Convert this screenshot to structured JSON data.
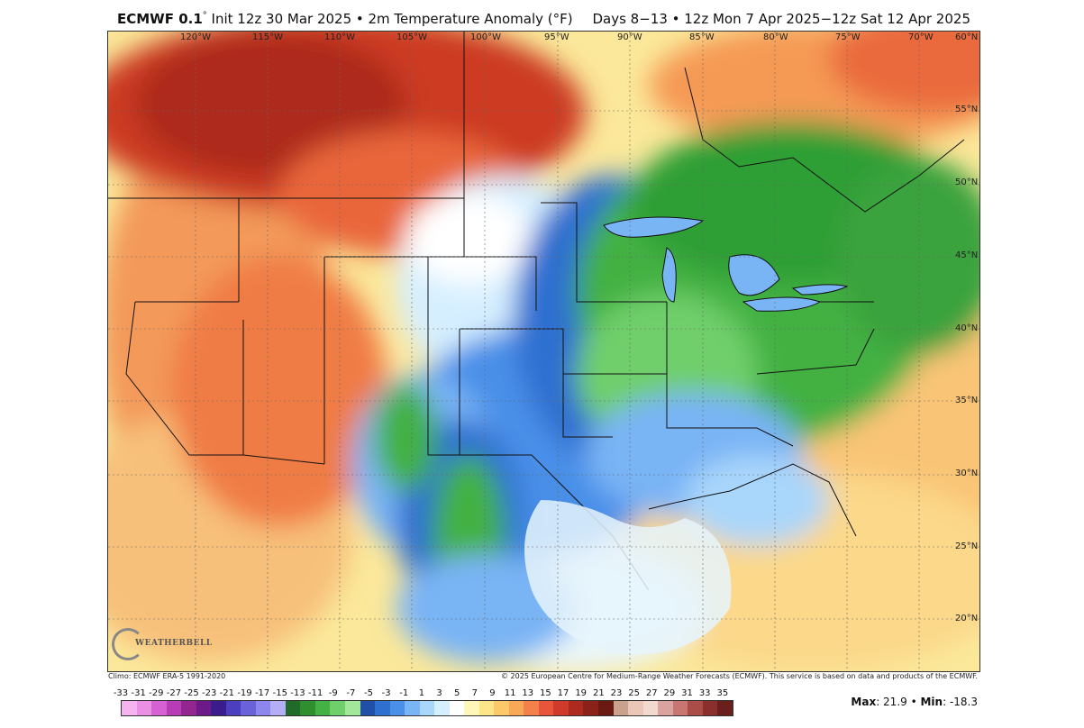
{
  "header": {
    "model": "ECMWF 0.1",
    "deg": "°",
    "desc": " Init 12z 30 Mar 2025 • 2m Temperature Anomaly (°F)",
    "valid": "Days 8−13 • 12z Mon 7 Apr 2025−12z Sat 12 Apr 2025"
  },
  "map": {
    "lon_labels": [
      "120°W",
      "115°W",
      "110°W",
      "105°W",
      "100°W",
      "95°W",
      "90°W",
      "85°W",
      "80°W",
      "75°W",
      "70°W",
      "60°N"
    ],
    "lat_labels": [
      "55°N",
      "50°N",
      "45°N",
      "40°N",
      "35°N",
      "30°N",
      "25°N",
      "20°N"
    ]
  },
  "footer": {
    "climo": "Climo: ECMWF ERA-5 1991-2020",
    "copyright": "© 2025 European Centre for Medium-Range Weather Forecasts (ECMWF). This service is based on data and products of the ECMWF."
  },
  "legend": {
    "ticks": [
      "-33",
      "-31",
      "-29",
      "-27",
      "-25",
      "-23",
      "-21",
      "-19",
      "-17",
      "-15",
      "-13",
      "-11",
      "-9",
      "-7",
      "-5",
      "-3",
      "-1",
      "1",
      "3",
      "5",
      "7",
      "9",
      "11",
      "13",
      "15",
      "17",
      "19",
      "21",
      "23",
      "25",
      "27",
      "29",
      "31",
      "33",
      "35"
    ],
    "colors": [
      "#f5b3f0",
      "#ea8fe3",
      "#d561d3",
      "#b73cb6",
      "#932590",
      "#6b1a88",
      "#3a1c8c",
      "#4b3fbf",
      "#6a62d9",
      "#8d86ec",
      "#b3aef5",
      "#226a2a",
      "#2f8f2f",
      "#43b143",
      "#6fcf6a",
      "#a3e79b",
      "#1f4fa6",
      "#2f6fd0",
      "#4a8fe8",
      "#79b4f5",
      "#a9d6fb",
      "#d6efff",
      "#ffffff",
      "#fff7b8",
      "#fde58a",
      "#fcc96a",
      "#f9a857",
      "#f4804a",
      "#e8553a",
      "#cf3a2b",
      "#ad2a1f",
      "#8a2219",
      "#6a1a12",
      "#c9a18c",
      "#e9c6b7",
      "#f2d9cf",
      "#dba3a0",
      "#c77672",
      "#a94d49",
      "#8b2f2c",
      "#6b1f1c"
    ]
  },
  "stats": {
    "max_label": "Max",
    "max_value": ": 21.9 • ",
    "min_label": "Min",
    "min_value": ": -18.3"
  },
  "logo": {
    "text": "WEATHERBELL"
  }
}
